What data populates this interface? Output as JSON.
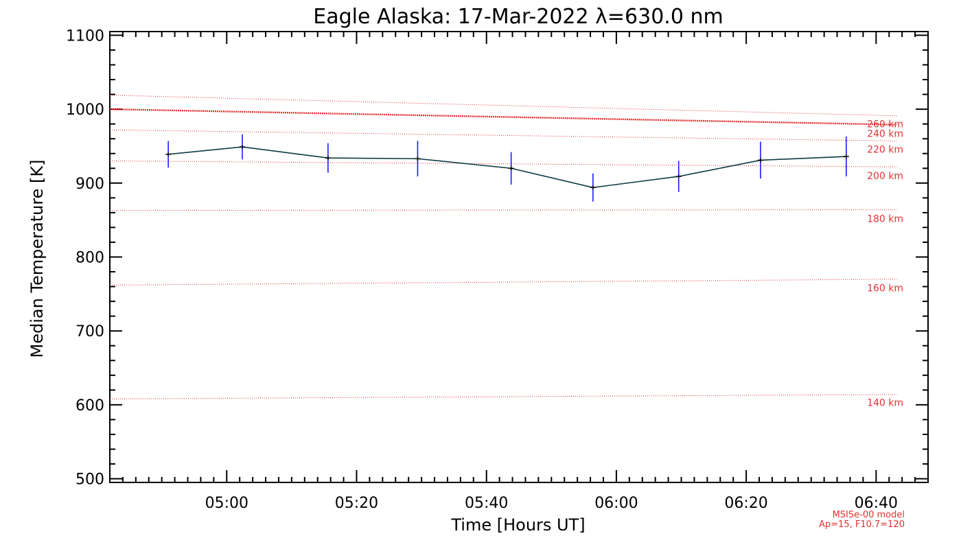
{
  "colors": {
    "model": "#e23030",
    "data_line": "#0c3a44",
    "error_bar": "#1a1aff",
    "marker": "#000000",
    "axis": "#000000"
  },
  "chart_data": {
    "type": "line",
    "title": "Eagle Alaska: 17-Mar-2022 λ=630.0 nm",
    "xlabel": "Time [Hours UT]",
    "ylabel": "Median Temperature [K]",
    "xlim": [
      4.7,
      6.8
    ],
    "ylim": [
      495,
      1105
    ],
    "xticks": [
      {
        "x": 5.0,
        "label": "05:00"
      },
      {
        "x": 5.3333,
        "label": "05:20"
      },
      {
        "x": 5.6667,
        "label": "05:40"
      },
      {
        "x": 6.0,
        "label": "06:00"
      },
      {
        "x": 6.3333,
        "label": "06:20"
      },
      {
        "x": 6.6667,
        "label": "06:40"
      }
    ],
    "yticks": [
      500,
      600,
      700,
      800,
      900,
      1000,
      1100
    ],
    "grid": false,
    "series": [
      {
        "x": [
          4.85,
          5.04,
          5.26,
          5.49,
          5.73,
          5.94,
          6.16,
          6.37,
          6.59
        ],
        "values": [
          939,
          949,
          934,
          933,
          920,
          894,
          909,
          931,
          936
        ],
        "errors": [
          18,
          17,
          20,
          24,
          22,
          19,
          21,
          25,
          27
        ]
      }
    ],
    "model_curves": [
      {
        "label": "260 km",
        "y_start": 1000,
        "y_end": 979,
        "emphasis": true
      },
      {
        "label": "240 km",
        "y_start": 972,
        "y_end": 957,
        "emphasis": false
      },
      {
        "label": "220 km",
        "y_start": 930,
        "y_end": 922,
        "emphasis": false
      },
      {
        "label": "200 km",
        "y_start": 1019,
        "y_end": 991,
        "emphasis": false
      },
      {
        "label": "180 km",
        "y_start": 863,
        "y_end": 864,
        "emphasis": false
      },
      {
        "label": "160 km",
        "y_start": 762,
        "y_end": 770,
        "emphasis": false
      },
      {
        "label": "140 km",
        "y_start": 608,
        "y_end": 614,
        "emphasis": false
      }
    ],
    "model_label_y": [
      980,
      967,
      946,
      910,
      852,
      758,
      603
    ],
    "footnotes": [
      "MSISe-00 model",
      "Ap=15, F10.7=120"
    ]
  }
}
